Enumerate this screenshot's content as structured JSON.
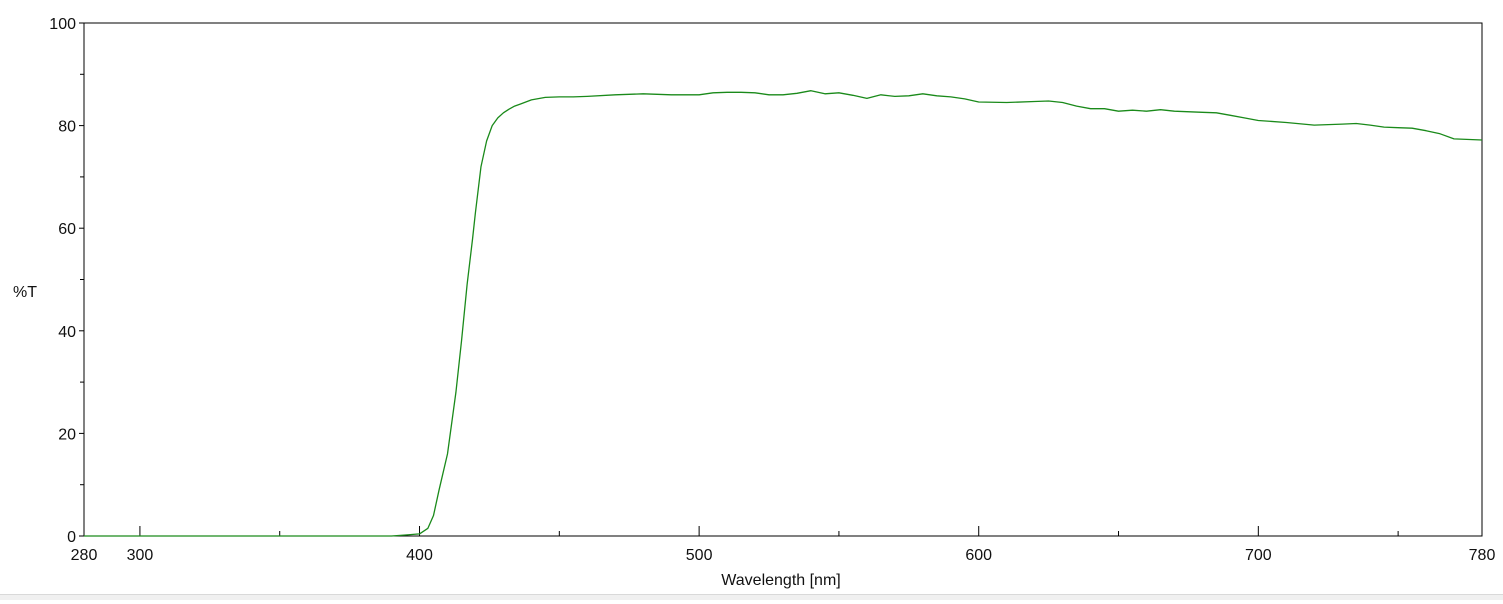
{
  "chart_data": {
    "type": "line",
    "title": "",
    "xlabel": "Wavelength [nm]",
    "ylabel": "%T",
    "xlim": [
      280,
      780
    ],
    "ylim": [
      0,
      100
    ],
    "x_major_ticks": [
      280,
      300,
      400,
      500,
      600,
      700,
      780
    ],
    "x_minor_ticks": [
      350,
      450,
      550,
      650,
      750
    ],
    "y_major_ticks": [
      0,
      20,
      40,
      60,
      80,
      100
    ],
    "y_minor_ticks": [
      10,
      30,
      50,
      70,
      90
    ],
    "grid": false,
    "legend": "none",
    "series": [
      {
        "color": "#1a8a1a",
        "x": [
          280,
          300,
          350,
          390,
          395,
          400,
          403,
          405,
          407,
          410,
          413,
          415,
          417,
          419,
          420,
          422,
          424,
          426,
          428,
          430,
          432,
          434,
          436,
          440,
          445,
          450,
          455,
          460,
          470,
          475,
          480,
          490,
          500,
          505,
          510,
          515,
          520,
          525,
          530,
          535,
          540,
          545,
          550,
          555,
          560,
          565,
          570,
          575,
          580,
          585,
          590,
          595,
          600,
          610,
          620,
          625,
          630,
          635,
          640,
          645,
          650,
          655,
          660,
          665,
          670,
          680,
          685,
          690,
          695,
          700,
          710,
          720,
          730,
          735,
          740,
          745,
          750,
          755,
          760,
          765,
          770,
          780
        ],
        "y": [
          0,
          0,
          0,
          0,
          0.2,
          0.4,
          1.5,
          4,
          9,
          16,
          28,
          38,
          49,
          58,
          63,
          72,
          77,
          80,
          81.5,
          82.5,
          83.2,
          83.8,
          84.2,
          85,
          85.5,
          85.6,
          85.6,
          85.7,
          86,
          86.1,
          86.2,
          86,
          86,
          86.4,
          86.5,
          86.5,
          86.4,
          86,
          86,
          86.3,
          86.8,
          86.2,
          86.4,
          85.9,
          85.3,
          86,
          85.7,
          85.8,
          86.2,
          85.8,
          85.6,
          85.2,
          84.6,
          84.5,
          84.7,
          84.8,
          84.5,
          83.8,
          83.3,
          83.3,
          82.8,
          83,
          82.8,
          83.1,
          82.8,
          82.6,
          82.5,
          82,
          81.5,
          81,
          80.6,
          80.1,
          80.3,
          80.4,
          80.1,
          79.7,
          79.6,
          79.5,
          79,
          78.4,
          77.4,
          77.2
        ]
      }
    ]
  }
}
